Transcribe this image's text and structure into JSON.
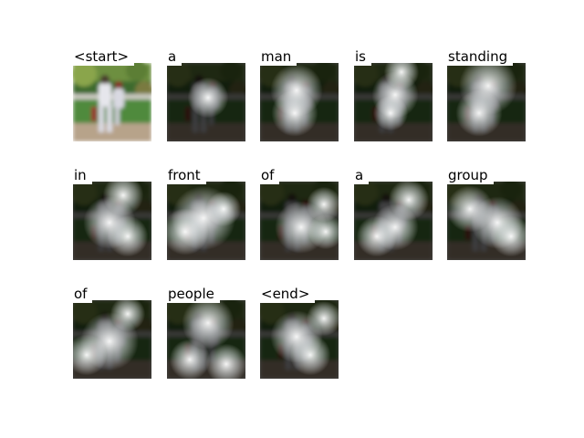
{
  "figure": {
    "words": [
      "<start>",
      "a",
      "man",
      "is",
      "standing",
      "in",
      "front",
      "of",
      "a",
      "group",
      "of",
      "people",
      "<end>"
    ],
    "columns": 5
  }
}
